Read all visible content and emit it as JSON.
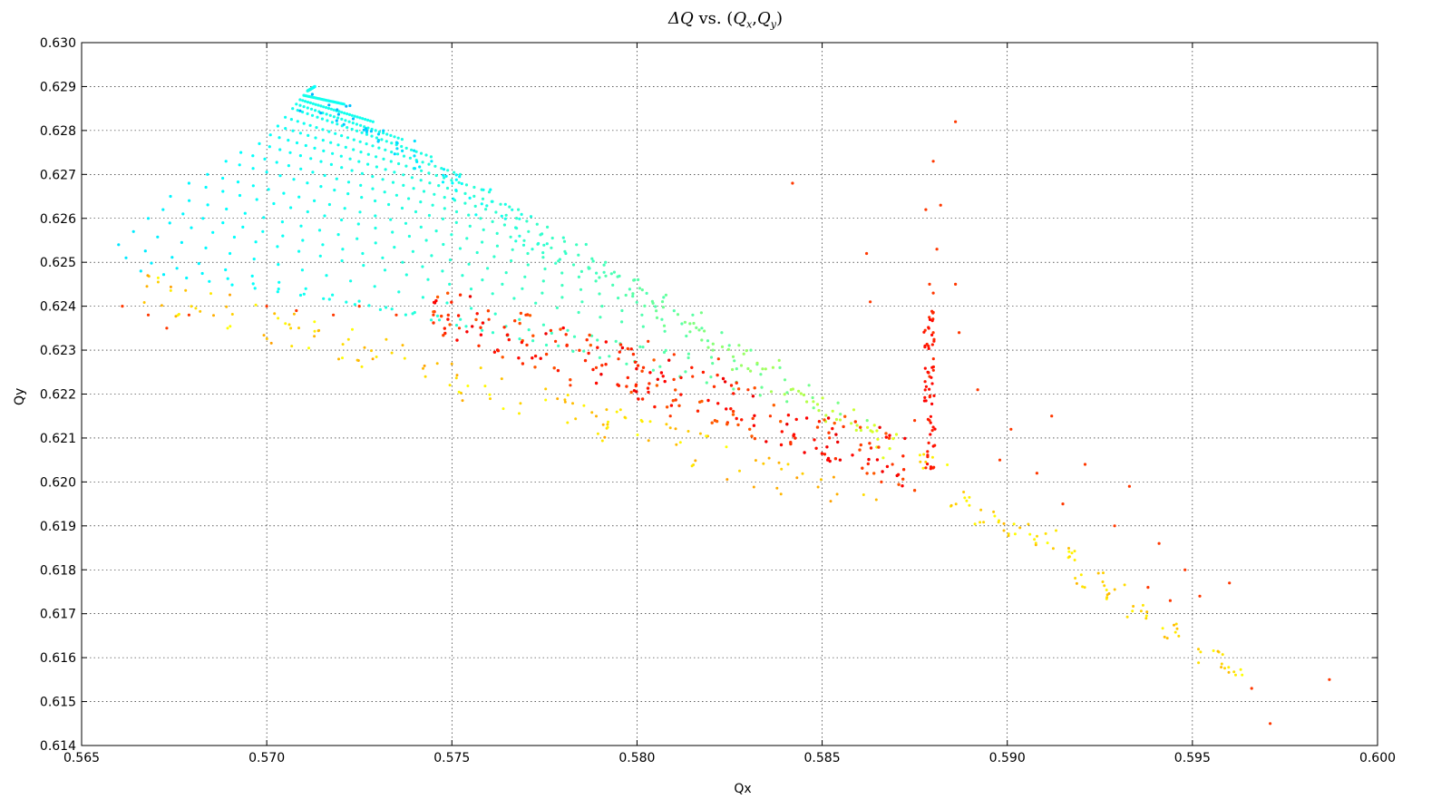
{
  "chart_data": {
    "type": "scatter",
    "title": "ΔQ vs. (Qx,Qy)",
    "title_parts": {
      "delta": "Δ",
      "q": "Q",
      "vs": " vs. (",
      "qx_q": "Q",
      "qx_sub": "x",
      "comma": ",",
      "qy_q": "Q",
      "qy_sub": "y",
      "close": ")"
    },
    "xlabel": "Qx",
    "ylabel": "Qy",
    "xlim": [
      0.565,
      0.6
    ],
    "ylim": [
      0.614,
      0.63
    ],
    "xticks": [
      "0.565",
      "0.570",
      "0.575",
      "0.580",
      "0.585",
      "0.590",
      "0.595",
      "0.600"
    ],
    "yticks": [
      "0.614",
      "0.615",
      "0.616",
      "0.617",
      "0.618",
      "0.619",
      "0.620",
      "0.621",
      "0.622",
      "0.623",
      "0.624",
      "0.625",
      "0.626",
      "0.627",
      "0.628",
      "0.629",
      "0.630"
    ],
    "grid": true,
    "colormap": "jet",
    "fan_apex": [
      0.5713,
      0.629
    ],
    "fan_left_ends": [
      [
        0.566,
        0.6254
      ],
      [
        0.5662,
        0.6251
      ],
      [
        0.5664,
        0.6257
      ],
      [
        0.5666,
        0.6248
      ],
      [
        0.5668,
        0.626
      ],
      [
        0.5672,
        0.6262
      ],
      [
        0.5674,
        0.6265
      ],
      [
        0.5679,
        0.6268
      ],
      [
        0.5684,
        0.627
      ],
      [
        0.5689,
        0.6273
      ],
      [
        0.5693,
        0.6275
      ],
      [
        0.5698,
        0.6277
      ],
      [
        0.5701,
        0.6279
      ],
      [
        0.5703,
        0.6281
      ],
      [
        0.5705,
        0.6283
      ],
      [
        0.5707,
        0.6285
      ],
      [
        0.5708,
        0.6286
      ],
      [
        0.5709,
        0.6287
      ],
      [
        0.571,
        0.6288
      ],
      [
        0.5711,
        0.6289
      ]
    ],
    "fan_diagonal_end": [
      0.587,
      0.621
    ],
    "tail_points": [
      [
        0.588,
        0.6205
      ],
      [
        0.5888,
        0.6196
      ],
      [
        0.5895,
        0.6192
      ],
      [
        0.5902,
        0.6189
      ],
      [
        0.591,
        0.6187
      ],
      [
        0.5915,
        0.6183
      ],
      [
        0.5922,
        0.6178
      ],
      [
        0.5928,
        0.6175
      ],
      [
        0.5935,
        0.617
      ],
      [
        0.5944,
        0.6166
      ],
      [
        0.5955,
        0.616
      ],
      [
        0.596,
        0.6156
      ]
    ],
    "scattered_points": [
      [
        0.5661,
        0.624
      ],
      [
        0.5668,
        0.6238
      ],
      [
        0.5673,
        0.6235
      ],
      [
        0.5679,
        0.6238
      ],
      [
        0.57,
        0.624
      ],
      [
        0.5708,
        0.6239
      ],
      [
        0.5718,
        0.6238
      ],
      [
        0.5725,
        0.624
      ],
      [
        0.5735,
        0.6238
      ],
      [
        0.5745,
        0.6238
      ],
      [
        0.5752,
        0.6235
      ],
      [
        0.576,
        0.6237
      ],
      [
        0.577,
        0.6238
      ],
      [
        0.5778,
        0.6232
      ],
      [
        0.5782,
        0.6222
      ],
      [
        0.5789,
        0.6226
      ],
      [
        0.5795,
        0.6228
      ],
      [
        0.5803,
        0.6232
      ],
      [
        0.581,
        0.6229
      ],
      [
        0.5809,
        0.6215
      ],
      [
        0.5815,
        0.6224
      ],
      [
        0.5822,
        0.6228
      ],
      [
        0.583,
        0.6221
      ],
      [
        0.5842,
        0.6268
      ],
      [
        0.5836,
        0.6215
      ],
      [
        0.5852,
        0.621
      ],
      [
        0.5862,
        0.6252
      ],
      [
        0.5863,
        0.6241
      ],
      [
        0.5866,
        0.62
      ],
      [
        0.5869,
        0.6204
      ],
      [
        0.5875,
        0.6214
      ],
      [
        0.588,
        0.6273
      ],
      [
        0.5878,
        0.6262
      ],
      [
        0.5882,
        0.6263
      ],
      [
        0.5881,
        0.6253
      ],
      [
        0.5879,
        0.6245
      ],
      [
        0.588,
        0.6243
      ],
      [
        0.5886,
        0.6245
      ],
      [
        0.588,
        0.6234
      ],
      [
        0.5879,
        0.6224
      ],
      [
        0.5879,
        0.6214
      ],
      [
        0.5886,
        0.6282
      ],
      [
        0.5887,
        0.6234
      ],
      [
        0.5892,
        0.6221
      ],
      [
        0.5898,
        0.6205
      ],
      [
        0.5901,
        0.6212
      ],
      [
        0.5908,
        0.6202
      ],
      [
        0.5912,
        0.6215
      ],
      [
        0.5915,
        0.6195
      ],
      [
        0.5921,
        0.6204
      ],
      [
        0.5929,
        0.619
      ],
      [
        0.5933,
        0.6199
      ],
      [
        0.5938,
        0.6176
      ],
      [
        0.5941,
        0.6186
      ],
      [
        0.5944,
        0.6173
      ],
      [
        0.5948,
        0.618
      ],
      [
        0.5952,
        0.6174
      ],
      [
        0.596,
        0.6177
      ],
      [
        0.5966,
        0.6153
      ],
      [
        0.5971,
        0.6145
      ],
      [
        0.5987,
        0.6155
      ]
    ]
  }
}
